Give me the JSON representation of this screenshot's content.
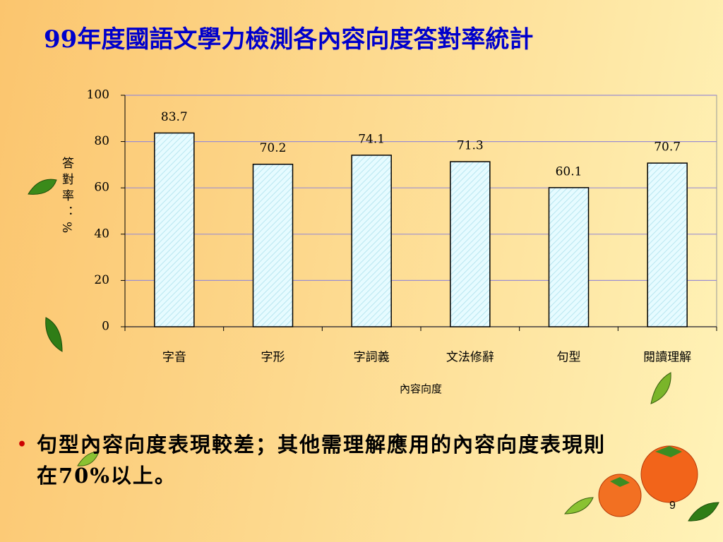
{
  "chart_data": {
    "type": "bar",
    "title": "99年度國語文學力檢測各內容向度答對率統計",
    "y_label": "答對率：%",
    "x_label": "內容向度",
    "categories": [
      "字音",
      "字形",
      "字詞義",
      "文法修辭",
      "句型",
      "閱讀理解"
    ],
    "values": [
      83.7,
      70.2,
      74.1,
      71.3,
      60.1,
      70.7
    ],
    "color": "#e6fbff",
    "ylim": [
      0,
      100
    ],
    "yticks": [
      0,
      20,
      40,
      60,
      80,
      100
    ],
    "grid": true,
    "annotation": "句型內容向度表現較差；其他需理解應用的內容向度表現則在70%以上。"
  },
  "page_number": "9"
}
